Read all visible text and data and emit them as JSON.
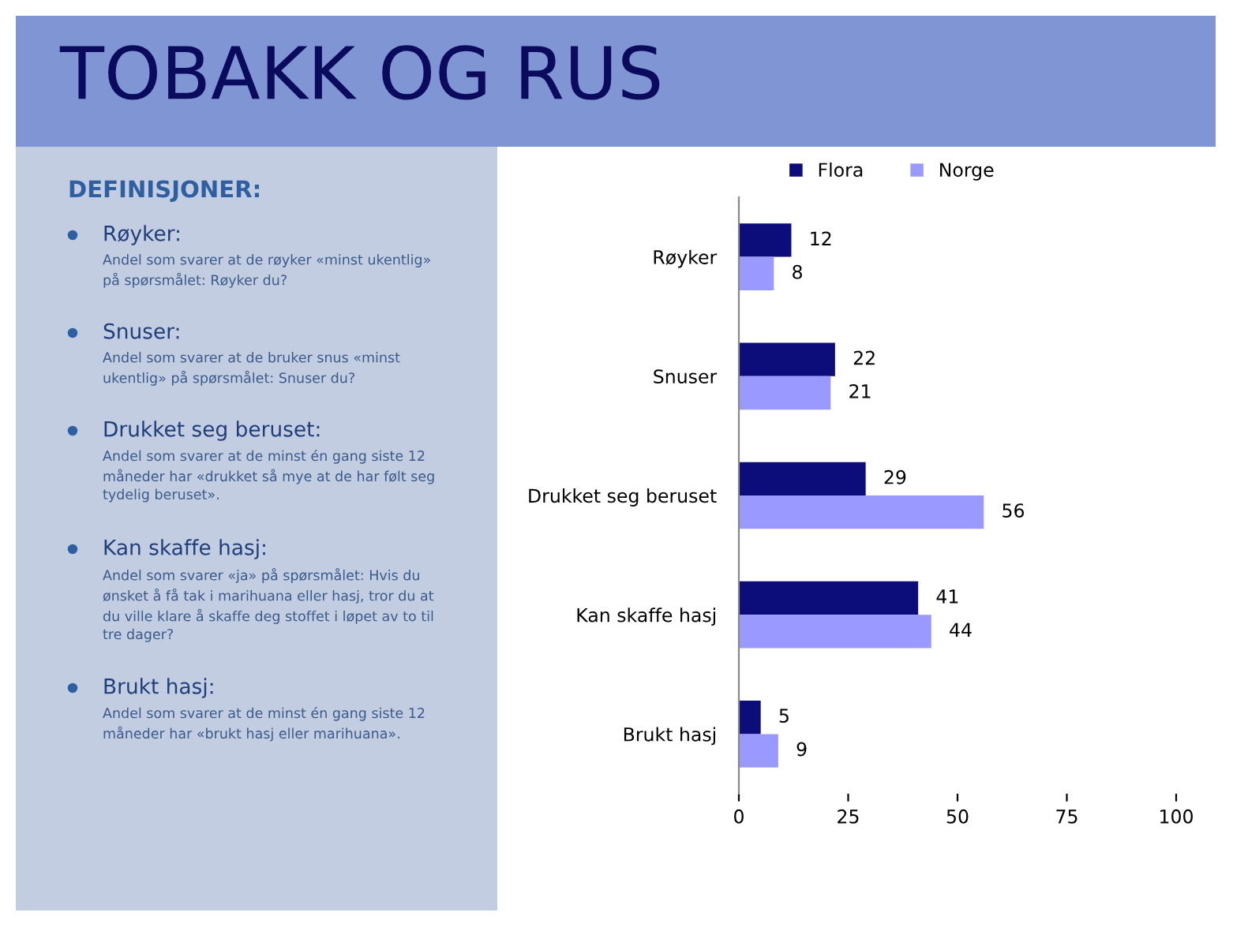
{
  "chart_data": {
    "type": "bar",
    "orientation": "horizontal",
    "title": "TOBAKK OG RUS",
    "categories": [
      "Røyker",
      "Snuser",
      "Drukket seg beruset",
      "Kan skaffe hasj",
      "Brukt hasj"
    ],
    "series": [
      {
        "name": "Flora",
        "color": "#0c0c7a",
        "values": [
          12,
          22,
          29,
          41,
          5
        ]
      },
      {
        "name": "Norge",
        "color": "#9999ff",
        "values": [
          8,
          21,
          56,
          44,
          9
        ]
      }
    ],
    "xlim": [
      0,
      100
    ],
    "xticks": [
      0,
      25,
      50,
      75,
      100
    ],
    "data_labels": true,
    "legend": "top",
    "grid": false,
    "annotations": [
      "DEFINISJONER:",
      "Røyker:",
      "Andel som svarer at de røyker «minst ukentlig»\npå spørsmålet: Røyker du?",
      "Snuser:",
      "Andel som svarer at de bruker snus «minst\nukentlig» på spørsmålet: Snuser du?",
      "Drukket seg beruset:",
      "Andel som svarer at de minst én gang siste 12\nmåneder har «drukket så mye at de har følt seg\ntydelig beruset».",
      "Kan skaffe hasj:",
      "Andel som svarer «ja» på spørsmålet: Hvis du\nønsket å få tak i marihuana eller hasj, tror du at\ndu ville klare å skaffe deg stoffet i løpet av to til\ntre dager?",
      "Brukt hasj:",
      "Andel som svarer at de minst én gang siste 12\nmåneder har «brukt hasj eller marihuana»."
    ]
  }
}
